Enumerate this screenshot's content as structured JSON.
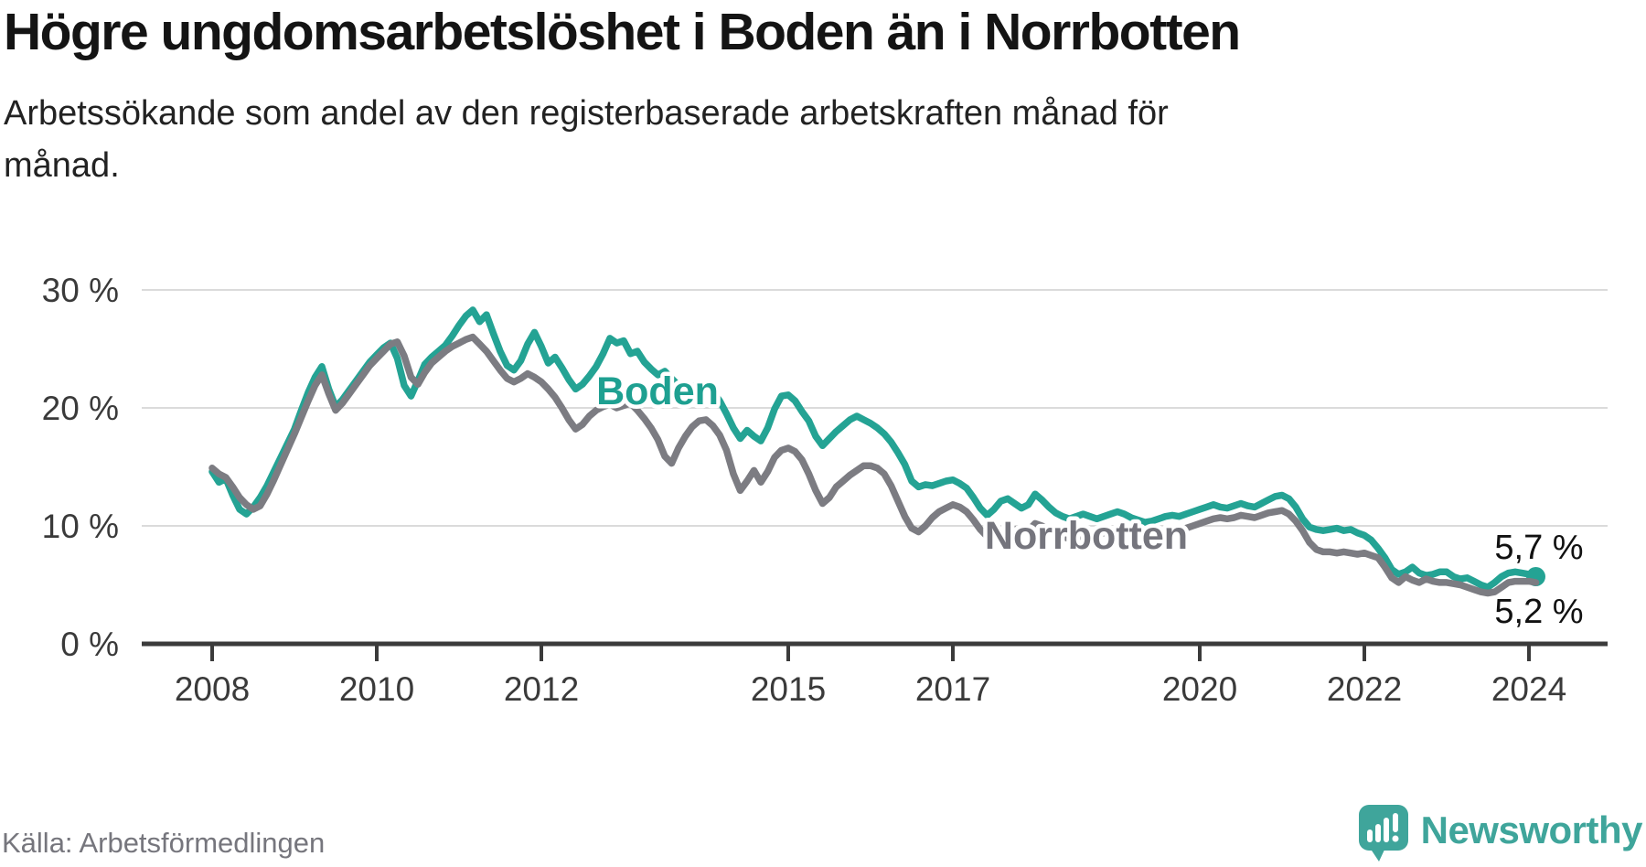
{
  "title": "Högre ungdomsarbetslöshet i Boden än i Norrbotten",
  "subtitle": "Arbetssökande som andel av den registerbaserade arbetskraften månad för\nmånad.",
  "source": "Källa: Arbetsförmedlingen",
  "brand": {
    "name": "Newsworthy",
    "icon": "speech-bubble-bar-chart-icon"
  },
  "colors": {
    "boden": "#24a394",
    "norrbotten": "#7c7c82",
    "grid": "#dbdbdb",
    "axis": "#3b3b3b",
    "tick_text": "#3a3a3a",
    "title_text": "#141414",
    "source_text": "#76767d",
    "brand_teal": "#3fa59b"
  },
  "chart_data": {
    "type": "line",
    "title": "Högre ungdomsarbetslöshet i Boden än i Norrbotten",
    "xlabel": "",
    "ylabel": "",
    "x_unit": "month",
    "x_range": [
      "2008-01",
      "2024-02"
    ],
    "ylim": [
      0,
      30
    ],
    "grid": "horizontal",
    "legend_position": "inline-labels",
    "y_ticks": [
      {
        "value": 0,
        "label": "0 %"
      },
      {
        "value": 10,
        "label": "10 %"
      },
      {
        "value": 20,
        "label": "20 %"
      },
      {
        "value": 30,
        "label": "30 %"
      }
    ],
    "x_ticks": [
      {
        "year": 2008,
        "label": "2008"
      },
      {
        "year": 2010,
        "label": "2010"
      },
      {
        "year": 2012,
        "label": "2012"
      },
      {
        "year": 2015,
        "label": "2015"
      },
      {
        "year": 2017,
        "label": "2017"
      },
      {
        "year": 2020,
        "label": "2020"
      },
      {
        "year": 2022,
        "label": "2022"
      },
      {
        "year": 2024,
        "label": "2024"
      }
    ],
    "series": [
      {
        "name": "Boden",
        "color": "#24a394",
        "end_label": "5,7 %",
        "end_value": 5.7,
        "end_dot": true,
        "values": [
          14.6,
          13.7,
          14.0,
          12.6,
          11.4,
          11.0,
          11.6,
          12.4,
          13.4,
          14.6,
          15.8,
          17.0,
          18.2,
          19.8,
          21.3,
          22.6,
          23.5,
          21.6,
          20.1,
          20.7,
          21.5,
          22.3,
          23.1,
          23.9,
          24.5,
          25.1,
          25.5,
          24.2,
          21.9,
          21.0,
          22.3,
          23.7,
          24.3,
          24.8,
          25.3,
          26.1,
          27.0,
          27.8,
          28.3,
          27.3,
          27.9,
          26.3,
          24.8,
          23.6,
          23.2,
          24.0,
          25.4,
          26.4,
          25.2,
          23.8,
          24.3,
          23.4,
          22.4,
          21.6,
          22.0,
          22.7,
          23.5,
          24.6,
          25.9,
          25.5,
          25.7,
          24.6,
          24.8,
          23.9,
          23.3,
          22.8,
          23.1,
          22.5,
          21.9,
          21.5,
          21.8,
          22.1,
          21.8,
          21.4,
          20.6,
          19.5,
          18.3,
          17.4,
          18.1,
          17.6,
          17.2,
          18.3,
          19.9,
          21.0,
          21.1,
          20.6,
          19.7,
          18.9,
          17.6,
          16.8,
          17.4,
          18.0,
          18.5,
          19.0,
          19.3,
          19.0,
          18.7,
          18.3,
          17.8,
          17.1,
          16.2,
          15.2,
          13.8,
          13.3,
          13.5,
          13.4,
          13.6,
          13.8,
          13.9,
          13.6,
          13.2,
          12.4,
          11.5,
          10.9,
          11.4,
          12.1,
          12.3,
          11.9,
          11.5,
          11.8,
          12.7,
          12.2,
          11.6,
          11.1,
          10.8,
          10.6,
          10.8,
          11.0,
          10.8,
          10.6,
          10.8,
          11.0,
          11.2,
          11.0,
          10.7,
          10.5,
          10.3,
          10.4,
          10.6,
          10.8,
          10.9,
          10.8,
          11.0,
          11.2,
          11.4,
          11.6,
          11.8,
          11.6,
          11.5,
          11.7,
          11.9,
          11.7,
          11.6,
          11.9,
          12.2,
          12.5,
          12.6,
          12.3,
          11.6,
          10.6,
          9.9,
          9.7,
          9.6,
          9.7,
          9.8,
          9.6,
          9.7,
          9.4,
          9.2,
          8.8,
          8.1,
          7.3,
          6.3,
          5.9,
          6.1,
          6.5,
          6.0,
          5.8,
          5.9,
          6.1,
          6.1,
          5.7,
          5.5,
          5.6,
          5.3,
          5.0,
          4.8,
          5.2,
          5.7,
          6.0,
          6.1,
          6.0,
          5.9,
          5.7
        ]
      },
      {
        "name": "Norrbotten",
        "color": "#7c7c82",
        "end_label": "5,2 %",
        "end_value": 5.2,
        "end_dot": false,
        "values": [
          14.9,
          14.4,
          14.1,
          13.3,
          12.4,
          11.8,
          11.4,
          11.7,
          12.7,
          13.9,
          15.2,
          16.5,
          17.8,
          19.2,
          20.6,
          21.9,
          22.8,
          21.2,
          19.8,
          20.4,
          21.2,
          22.0,
          22.8,
          23.6,
          24.2,
          24.8,
          25.4,
          25.6,
          24.4,
          22.6,
          22.0,
          23.0,
          23.8,
          24.3,
          24.8,
          25.2,
          25.5,
          25.8,
          26.0,
          25.4,
          24.8,
          24.0,
          23.2,
          22.5,
          22.2,
          22.5,
          22.9,
          22.6,
          22.2,
          21.6,
          20.9,
          20.0,
          19.0,
          18.2,
          18.6,
          19.3,
          19.8,
          20.1,
          20.3,
          20.0,
          20.2,
          20.4,
          19.8,
          19.1,
          18.3,
          17.3,
          15.9,
          15.3,
          16.6,
          17.6,
          18.4,
          18.9,
          19.0,
          18.5,
          17.7,
          16.4,
          14.4,
          13.0,
          13.8,
          14.7,
          13.7,
          14.6,
          15.8,
          16.4,
          16.6,
          16.3,
          15.6,
          14.4,
          13.0,
          11.9,
          12.4,
          13.3,
          13.8,
          14.3,
          14.7,
          15.1,
          15.1,
          14.9,
          14.4,
          13.4,
          12.1,
          10.8,
          9.8,
          9.5,
          10.0,
          10.7,
          11.2,
          11.5,
          11.8,
          11.6,
          11.2,
          10.5,
          9.7,
          9.1,
          9.4,
          9.7,
          9.9,
          9.7,
          9.4,
          9.6,
          10.2,
          10.0,
          9.6,
          9.3,
          9.1,
          8.9,
          9.0,
          9.2,
          9.3,
          9.2,
          9.4,
          9.6,
          9.7,
          9.6,
          9.4,
          9.2,
          9.1,
          9.0,
          9.2,
          9.4,
          9.5,
          9.6,
          9.8,
          10.0,
          10.2,
          10.4,
          10.6,
          10.7,
          10.6,
          10.7,
          10.9,
          10.8,
          10.7,
          10.9,
          11.1,
          11.2,
          11.3,
          11.0,
          10.4,
          9.6,
          8.6,
          8.0,
          7.8,
          7.8,
          7.7,
          7.8,
          7.7,
          7.6,
          7.7,
          7.5,
          7.3,
          6.5,
          5.6,
          5.2,
          5.7,
          5.4,
          5.2,
          5.5,
          5.3,
          5.2,
          5.2,
          5.1,
          5.0,
          4.8,
          4.6,
          4.4,
          4.3,
          4.4,
          4.8,
          5.2,
          5.3,
          5.3,
          5.3,
          5.2
        ]
      }
    ],
    "series_labels": [
      {
        "text": "Boden",
        "year": 2013.41,
        "value": 21.5,
        "color": "#1ea091"
      },
      {
        "text": "Norrbotten",
        "year": 2018.62,
        "value": 9.2,
        "color": "#75757d"
      }
    ],
    "end_labels": [
      {
        "text": "5,7 %",
        "year": 2024.12,
        "value": 8.2
      },
      {
        "text": "5,2 %",
        "year": 2024.12,
        "value": 2.8
      }
    ]
  }
}
